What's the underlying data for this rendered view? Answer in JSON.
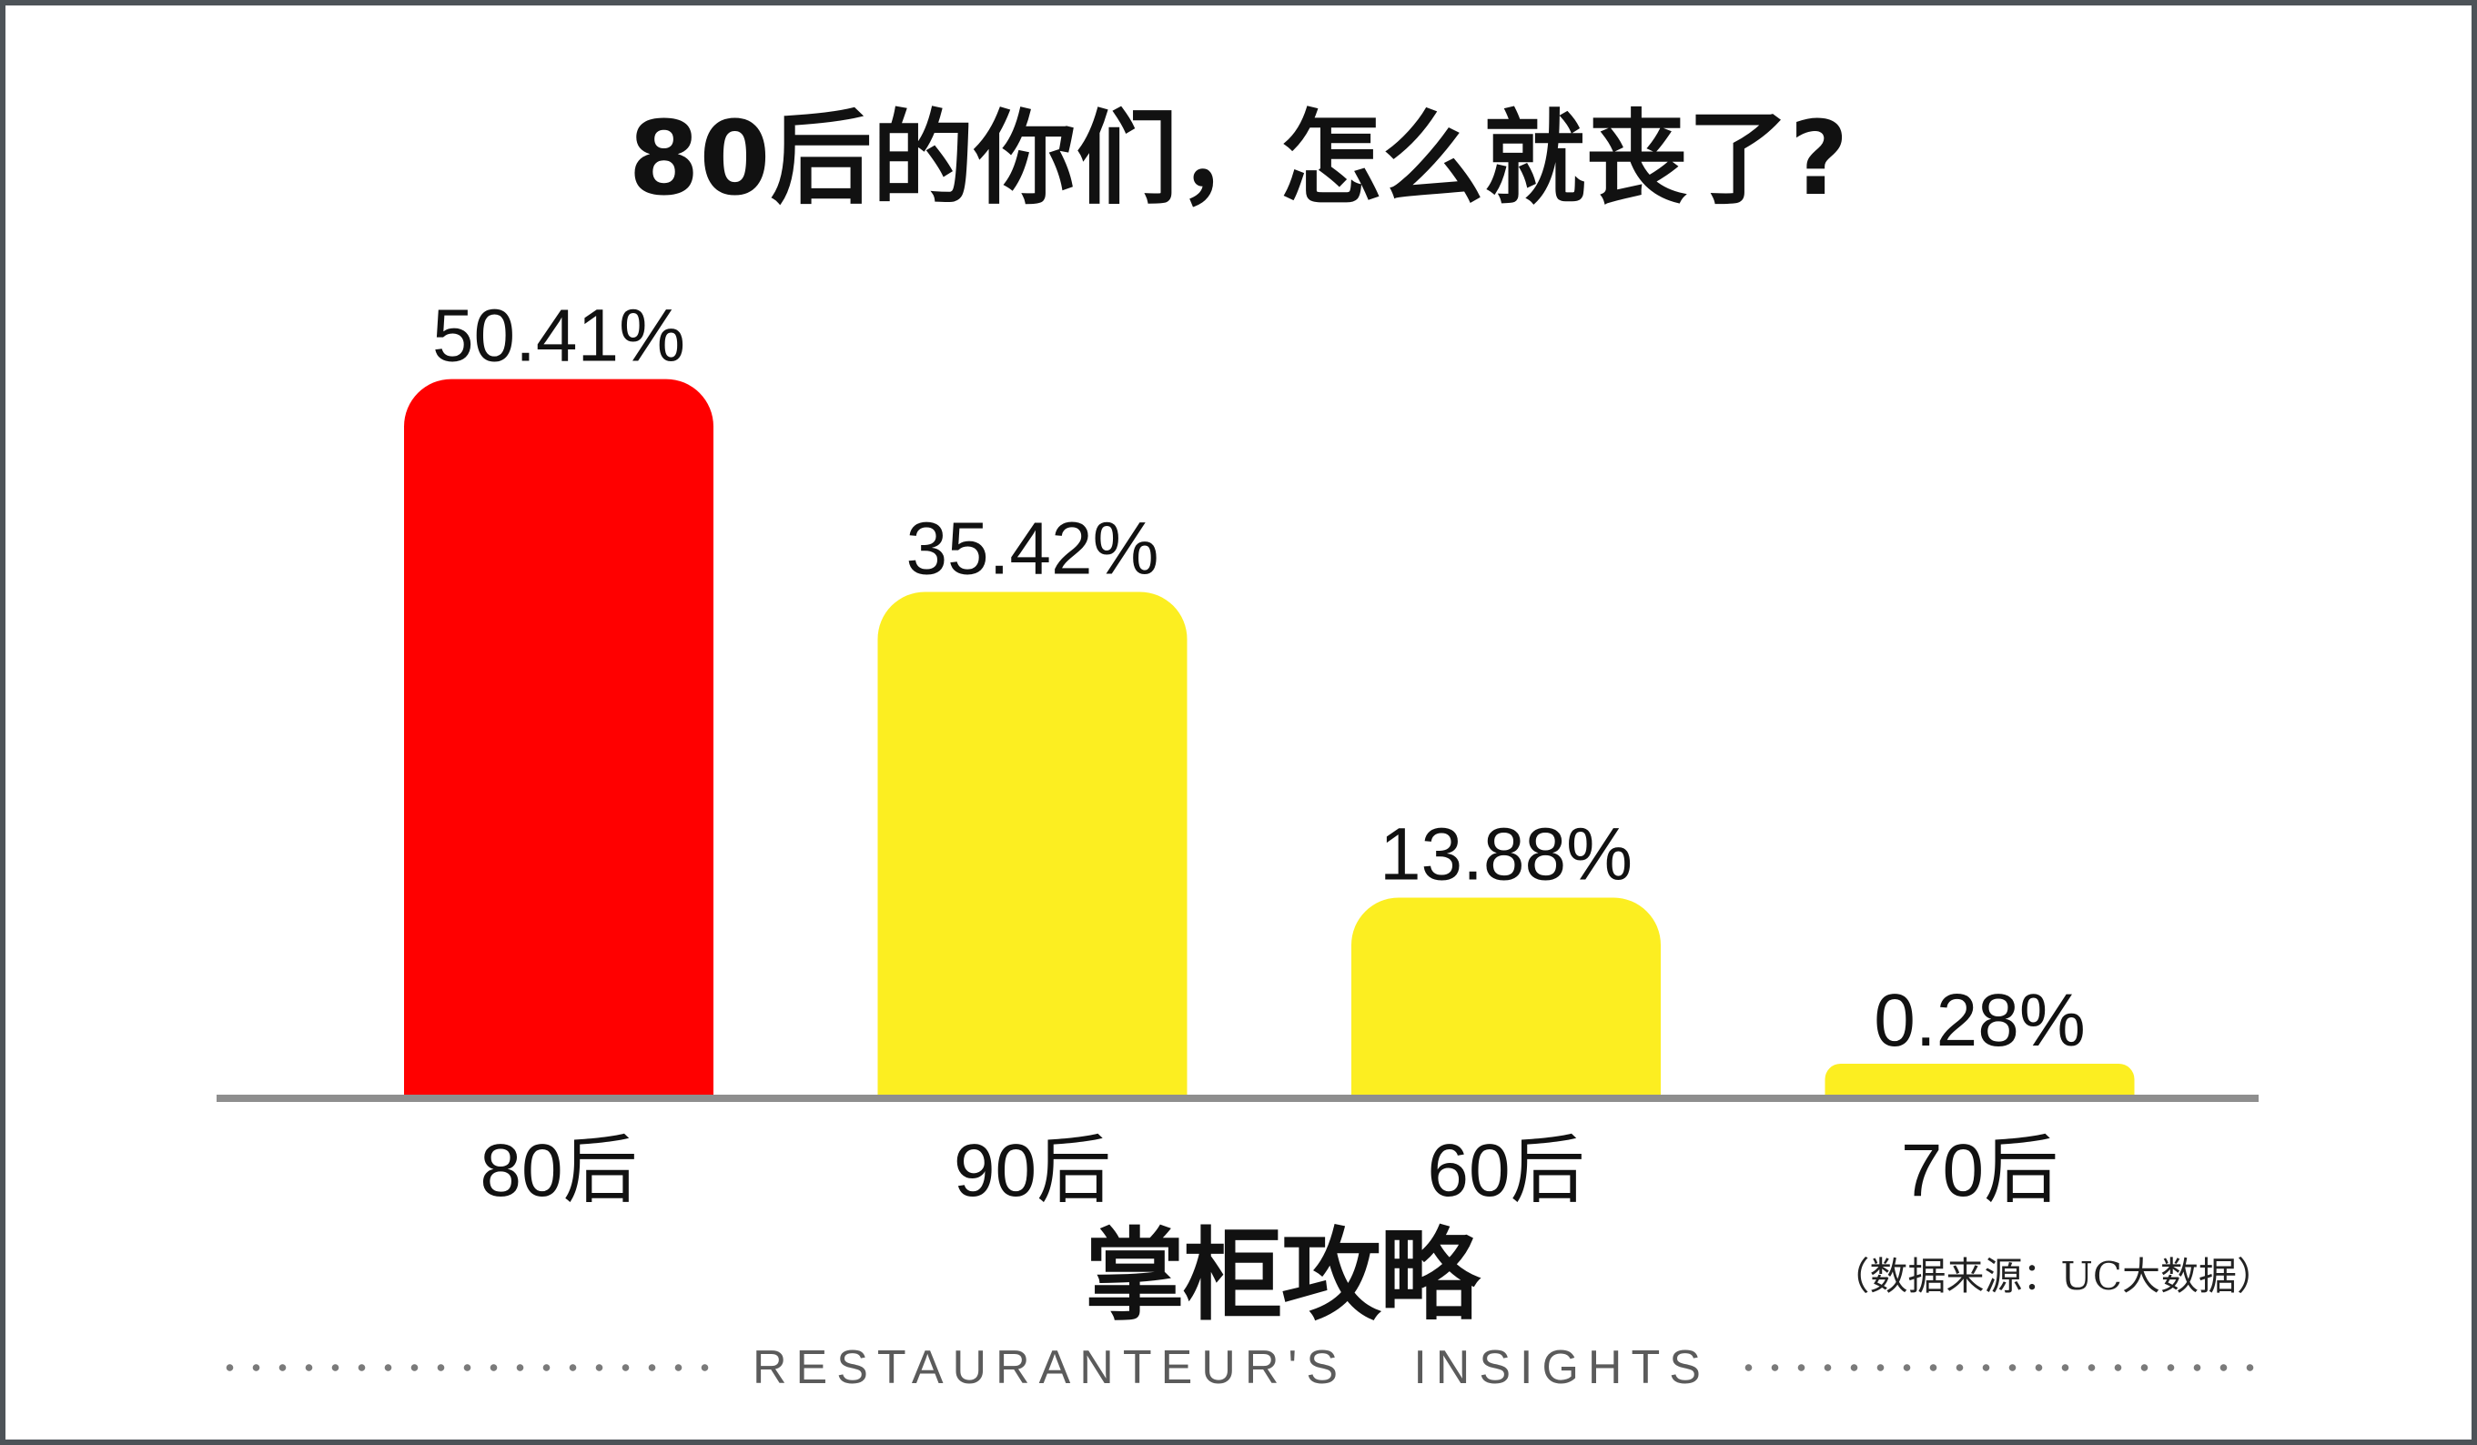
{
  "chart_data": {
    "type": "bar",
    "title": "80后的你们，怎么就丧了?",
    "categories": [
      "80后",
      "90后",
      "60后",
      "70后"
    ],
    "values": [
      50.41,
      35.42,
      13.88,
      0.28
    ],
    "unit": "%",
    "colors": [
      "#ff0000",
      "#fcee21",
      "#fcee21",
      "#fcee21"
    ],
    "grid": false,
    "legend": "none"
  },
  "brand": {
    "name": "掌柜攻略",
    "tagline": "RESTAURANTEUR'S   INSIGHTS"
  },
  "source": "（数据来源：UC大数据）",
  "colors": {
    "frame": "#4d5358",
    "baseline": "#8e8e8e",
    "tagline": "#5b5b5b",
    "text": "#111111"
  }
}
